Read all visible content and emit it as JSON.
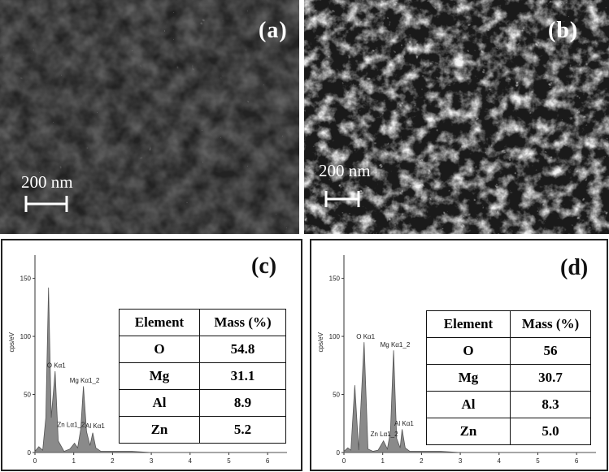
{
  "panels": {
    "a": {
      "label": "(a)",
      "scale_text": "200 nm"
    },
    "b": {
      "label": "(b)",
      "scale_text": "200 nm"
    },
    "c": {
      "label": "(c)",
      "ylabel": "cps/eV",
      "y_ticks": [
        "150",
        "100",
        "50",
        "0"
      ],
      "x_ticks": [
        "0",
        "1",
        "2",
        "3",
        "4",
        "5",
        "6"
      ],
      "peaks": [
        "O Kα1",
        "Mg Kα1_2",
        "Zn Lα1_2",
        "Al Kα1"
      ],
      "table": {
        "headers": [
          "Element",
          "Mass (%)"
        ],
        "rows": [
          [
            "O",
            "54.8"
          ],
          [
            "Mg",
            "31.1"
          ],
          [
            "Al",
            "8.9"
          ],
          [
            "Zn",
            "5.2"
          ]
        ]
      }
    },
    "d": {
      "label": "(d)",
      "ylabel": "cps/eV",
      "y_ticks": [
        "150",
        "100",
        "50",
        "0"
      ],
      "x_ticks": [
        "0",
        "1",
        "2",
        "3",
        "4",
        "5",
        "6"
      ],
      "peaks": [
        "O Kα1",
        "Mg Kα1_2",
        "Zn Lα1_2",
        "Al Kα1"
      ],
      "table": {
        "headers": [
          "Element",
          "Mass (%)"
        ],
        "rows": [
          [
            "O",
            "56"
          ],
          [
            "Mg",
            "30.7"
          ],
          [
            "Al",
            "8.3"
          ],
          [
            "Zn",
            "5.0"
          ]
        ]
      }
    }
  },
  "chart_data": [
    {
      "type": "line",
      "xlabel": "",
      "ylabel": "cps/eV",
      "xlim": [
        0,
        6.5
      ],
      "ylim": [
        0,
        170
      ],
      "series": [
        {
          "x": [
            0.0,
            0.1,
            0.2,
            0.28,
            0.35,
            0.42,
            0.52,
            0.6,
            0.75,
            0.9,
            1.02,
            1.1,
            1.18,
            1.25,
            1.33,
            1.42,
            1.49,
            1.57,
            1.7,
            2.0,
            2.5,
            3.0,
            4.0,
            5.0,
            6.0,
            6.5
          ],
          "y": [
            1,
            5,
            2,
            30,
            142,
            30,
            70,
            10,
            1,
            3,
            8,
            4,
            20,
            57,
            18,
            6,
            17,
            4,
            1,
            1,
            1,
            0,
            0,
            0,
            0,
            0
          ]
        }
      ]
    },
    {
      "type": "line",
      "xlabel": "",
      "ylabel": "cps/eV",
      "xlim": [
        0,
        6.5
      ],
      "ylim": [
        0,
        170
      ],
      "series": [
        {
          "x": [
            0.0,
            0.1,
            0.18,
            0.28,
            0.38,
            0.52,
            0.62,
            0.75,
            0.88,
            1.02,
            1.12,
            1.2,
            1.28,
            1.36,
            1.45,
            1.5,
            1.58,
            1.7,
            2.0,
            2.5,
            3.0,
            4.0,
            5.0,
            6.0,
            6.5
          ],
          "y": [
            1,
            4,
            2,
            58,
            2,
            95,
            3,
            1,
            2,
            10,
            3,
            18,
            88,
            12,
            4,
            20,
            4,
            1,
            1,
            1,
            0,
            0,
            0,
            0,
            0
          ]
        }
      ]
    }
  ]
}
